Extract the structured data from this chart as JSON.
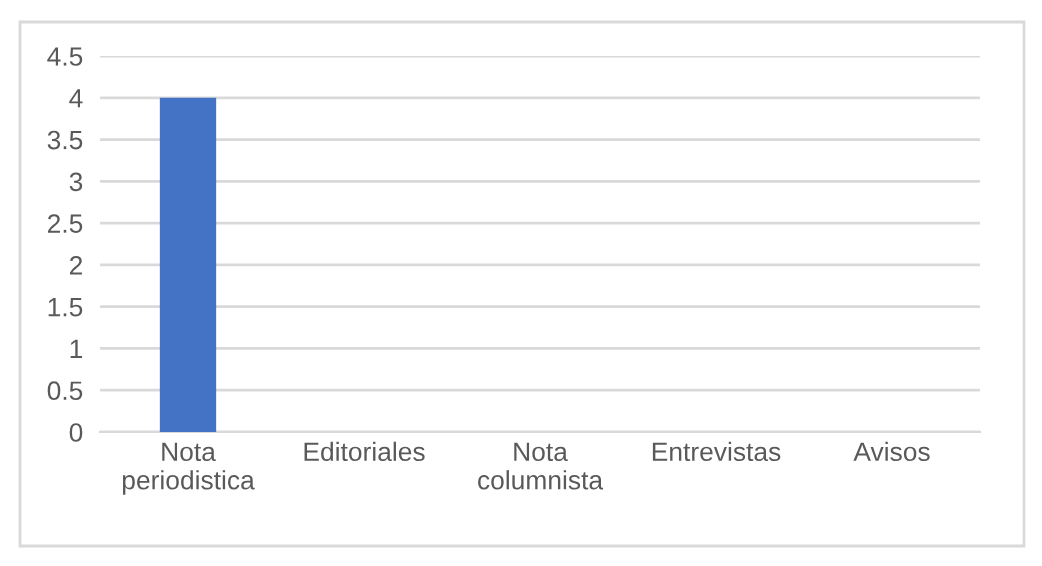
{
  "chart_data": {
    "type": "bar",
    "categories": [
      "Nota periodistica",
      "Editoriales",
      "Nota columnista",
      "Entrevistas",
      "Avisos"
    ],
    "values": [
      4,
      0,
      0,
      0,
      0
    ],
    "color": "#4472c4",
    "ylim": [
      0,
      4.5
    ],
    "yticks": [
      0,
      0.5,
      1,
      1.5,
      2,
      2.5,
      3,
      3.5,
      4,
      4.5
    ],
    "grid": "y",
    "legend": false
  }
}
